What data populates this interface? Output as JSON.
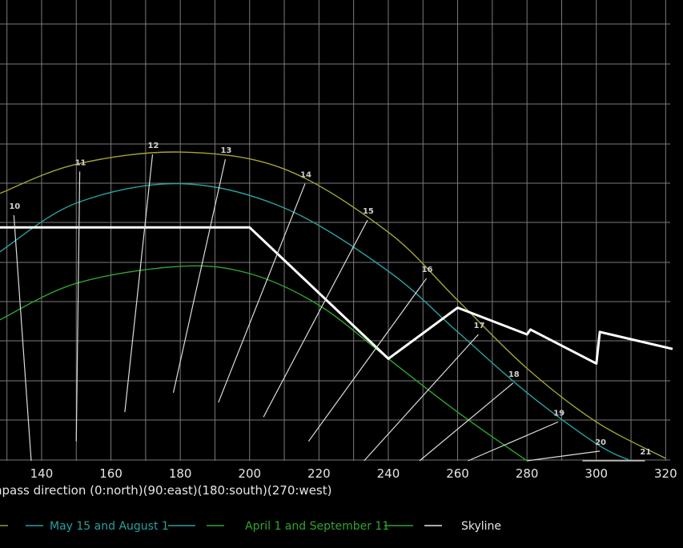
{
  "chart_data": {
    "type": "line",
    "xlabel": "npass direction (0:north)(90:east)(180:south)(270:west)",
    "xlim": [
      128,
      325
    ],
    "ylim": [
      0,
      90
    ],
    "x_ticks": [
      140,
      160,
      180,
      200,
      220,
      240,
      260,
      280,
      300,
      320
    ],
    "grid": true,
    "legend_position": "bottom",
    "series": [
      {
        "name": "",
        "color": "#a5a534",
        "points": [
          [
            128,
            55
          ],
          [
            150,
            61
          ],
          [
            180,
            63.5
          ],
          [
            210,
            60
          ],
          [
            240,
            47
          ],
          [
            260,
            33
          ],
          [
            280,
            19
          ],
          [
            300,
            8
          ],
          [
            320,
            0.5
          ]
        ]
      },
      {
        "name": "May 15 and August 1",
        "color": "#2aa0a0",
        "points": [
          [
            128,
            43
          ],
          [
            150,
            53
          ],
          [
            180,
            57
          ],
          [
            210,
            52
          ],
          [
            240,
            39
          ],
          [
            260,
            26.5
          ],
          [
            280,
            14
          ],
          [
            300,
            3.5
          ],
          [
            310,
            0
          ]
        ]
      },
      {
        "name": "April 1 and September 11",
        "color": "#2ea52e",
        "points": [
          [
            128,
            29
          ],
          [
            150,
            36.5
          ],
          [
            180,
            40
          ],
          [
            200,
            38.5
          ],
          [
            220,
            32
          ],
          [
            240,
            21
          ],
          [
            260,
            10
          ],
          [
            280,
            0
          ]
        ]
      },
      {
        "name": "Skyline",
        "color": "#ffffff",
        "points": [
          [
            128,
            48
          ],
          [
            200,
            48
          ],
          [
            240,
            21
          ],
          [
            260,
            31.5
          ],
          [
            280,
            26
          ],
          [
            281,
            27
          ],
          [
            300,
            20
          ],
          [
            301,
            26.5
          ],
          [
            322,
            23
          ]
        ]
      }
    ],
    "hour_lines": [
      {
        "label": "10",
        "top": [
          132,
          50.5
        ],
        "bottom": [
          137,
          0
        ]
      },
      {
        "label": "11",
        "top": [
          151,
          59.5
        ],
        "bottom": [
          150,
          4
        ]
      },
      {
        "label": "12",
        "top": [
          172,
          63
        ],
        "bottom": [
          164,
          10
        ]
      },
      {
        "label": "13",
        "top": [
          193,
          62
        ],
        "bottom": [
          178,
          14
        ]
      },
      {
        "label": "14",
        "top": [
          216,
          57
        ],
        "bottom": [
          191,
          12
        ]
      },
      {
        "label": "15",
        "top": [
          234,
          49.5
        ],
        "bottom": [
          204,
          9
        ]
      },
      {
        "label": "16",
        "top": [
          251,
          37.5
        ],
        "bottom": [
          217,
          4
        ]
      },
      {
        "label": "17",
        "top": [
          266,
          26
        ],
        "bottom": [
          233,
          0
        ]
      },
      {
        "label": "18",
        "top": [
          276,
          16
        ],
        "bottom": [
          249,
          0
        ]
      },
      {
        "label": "19",
        "top": [
          289,
          8
        ],
        "bottom": [
          263,
          0
        ]
      },
      {
        "label": "20",
        "top": [
          301,
          2
        ],
        "bottom": [
          280,
          0
        ]
      },
      {
        "label": "21",
        "top": [
          314,
          0
        ],
        "bottom": [
          296,
          0
        ]
      }
    ]
  },
  "legend": [
    {
      "label": "May 15 and August 1",
      "color": "#2aa0a0"
    },
    {
      "label": "April 1 and September 11",
      "color": "#2ea52e"
    },
    {
      "label": "Skyline",
      "color": "#e6e6e6"
    }
  ]
}
